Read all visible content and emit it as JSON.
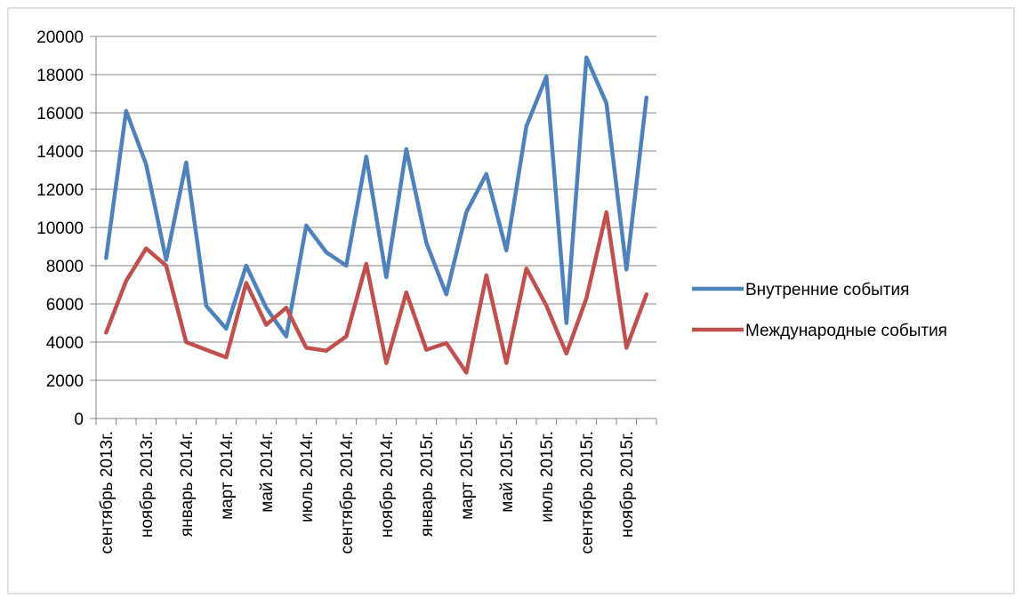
{
  "chart_data": {
    "type": "line",
    "title": "",
    "xlabel": "",
    "ylabel": "",
    "ylim": [
      0,
      20000
    ],
    "y_ticks": [
      0,
      2000,
      4000,
      6000,
      8000,
      10000,
      12000,
      14000,
      16000,
      18000,
      20000
    ],
    "grid": "horizontal",
    "legend_position": "right",
    "categories": [
      "сентябрь 2013г.",
      "октябрь 2013г.",
      "ноябрь 2013г.",
      "декабрь 2013г.",
      "январь 2014г.",
      "февраль 2014г.",
      "март 2014г.",
      "апрель 2014г.",
      "май 2014г.",
      "июнь 2014г.",
      "июль 2014г.",
      "август 2014г.",
      "сентябрь 2014г.",
      "октябрь 2014г.",
      "ноябрь 2014г.",
      "декабрь 2014г.",
      "январь 2015г.",
      "февраль 2015г.",
      "март 2015г.",
      "апрель 2015г.",
      "май 2015г.",
      "июнь 2015г.",
      "июль 2015г.",
      "август 2015г.",
      "сентябрь 2015г.",
      "октябрь 2015г.",
      "ноябрь 2015г.",
      "декабрь 2015г."
    ],
    "visible_category_labels": [
      "сентябрь 2013г.",
      "ноябрь 2013г.",
      "январь 2014г.",
      "март 2014г.",
      "май 2014г.",
      "июль 2014г.",
      "сентябрь 2014г.",
      "ноябрь 2014г.",
      "январь 2015г.",
      "март 2015г.",
      "май 2015г.",
      "июль 2015г.",
      "сентябрь 2015г.",
      "ноябрь 2015г."
    ],
    "series": [
      {
        "name": "Внутренние события",
        "color": "#4F81BD",
        "values": [
          8400,
          16100,
          13300,
          8300,
          13400,
          5900,
          4700,
          8000,
          5800,
          4300,
          10100,
          8700,
          8000,
          13700,
          7400,
          14100,
          9200,
          6500,
          10800,
          12800,
          8800,
          15300,
          17900,
          5000,
          18900,
          16500,
          7800,
          16800
        ]
      },
      {
        "name": "Международные события",
        "color": "#C0504D",
        "values": [
          4500,
          7200,
          8900,
          8000,
          4000,
          3600,
          3200,
          7100,
          4900,
          5800,
          3700,
          3550,
          4300,
          8100,
          2900,
          6600,
          3600,
          3950,
          2400,
          7500,
          2900,
          7850,
          5900,
          3400,
          6300,
          10800,
          3700,
          6500
        ]
      }
    ]
  }
}
